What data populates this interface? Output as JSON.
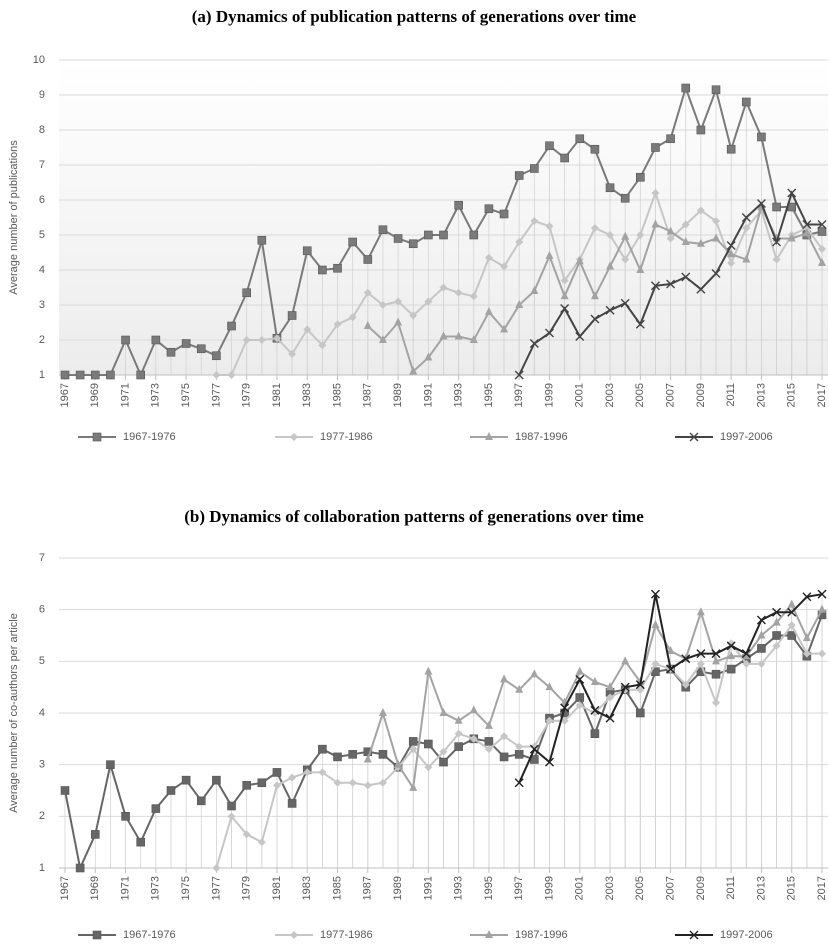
{
  "chart_data": [
    {
      "type": "line",
      "title": "(a) Dynamics of publication patterns of generations over time",
      "y_label": "Average number of publications",
      "x": [
        1967,
        1968,
        1969,
        1970,
        1971,
        1972,
        1973,
        1974,
        1975,
        1976,
        1977,
        1978,
        1979,
        1980,
        1981,
        1982,
        1983,
        1984,
        1985,
        1986,
        1987,
        1988,
        1989,
        1990,
        1991,
        1992,
        1993,
        1994,
        1995,
        1996,
        1997,
        1998,
        1999,
        2000,
        2001,
        2002,
        2003,
        2004,
        2005,
        2006,
        2007,
        2008,
        2009,
        2010,
        2011,
        2012,
        2013,
        2014,
        2015,
        2016,
        2017
      ],
      "xlim": [
        1967,
        2017
      ],
      "xticks": [
        1967,
        1969,
        1971,
        1973,
        1975,
        1977,
        1979,
        1981,
        1983,
        1985,
        1987,
        1989,
        1991,
        1993,
        1995,
        1997,
        1999,
        2001,
        2003,
        2005,
        2007,
        2009,
        2011,
        2013,
        2015,
        2017
      ],
      "ylim": [
        1,
        10
      ],
      "yticks": [
        1,
        2,
        3,
        4,
        5,
        6,
        7,
        8,
        9,
        10
      ],
      "grid": true,
      "series": [
        {
          "name": "1967-1976",
          "color": "#7a7a7a",
          "marker": "square",
          "values": [
            1,
            1,
            1,
            1,
            2,
            1,
            2,
            1.65,
            1.9,
            1.75,
            1.55,
            2.4,
            3.35,
            4.85,
            2.05,
            2.7,
            4.55,
            4.0,
            4.05,
            4.8,
            4.3,
            5.15,
            4.9,
            4.75,
            5.0,
            5.0,
            5.85,
            5.0,
            5.75,
            5.6,
            6.7,
            6.9,
            7.55,
            7.2,
            7.75,
            7.45,
            6.35,
            6.05,
            6.65,
            7.5,
            7.75,
            9.2,
            8.0,
            9.15,
            7.45,
            8.8,
            7.8,
            5.8,
            5.8,
            5.0,
            5.1
          ]
        },
        {
          "name": "1977-1986",
          "color": "#c6c6c6",
          "marker": "diamond",
          "values": [
            null,
            null,
            null,
            null,
            null,
            null,
            null,
            null,
            null,
            null,
            1,
            1,
            2,
            2,
            2.05,
            1.6,
            2.3,
            1.85,
            2.45,
            2.65,
            3.35,
            3.0,
            3.1,
            2.7,
            3.1,
            3.5,
            3.35,
            3.25,
            4.35,
            4.1,
            4.8,
            5.4,
            5.25,
            3.7,
            4.3,
            5.2,
            5.0,
            4.3,
            5.0,
            6.2,
            4.9,
            5.3,
            5.7,
            5.4,
            4.2,
            5.2,
            5.7,
            4.3,
            5.0,
            5.2,
            4.6
          ]
        },
        {
          "name": "1987-1996",
          "color": "#a3a3a3",
          "marker": "triangle",
          "values": [
            null,
            null,
            null,
            null,
            null,
            null,
            null,
            null,
            null,
            null,
            null,
            null,
            null,
            null,
            null,
            null,
            null,
            null,
            null,
            null,
            2.4,
            2.0,
            2.5,
            1.1,
            1.5,
            2.1,
            2.1,
            2.0,
            2.8,
            2.3,
            3.0,
            3.4,
            4.4,
            3.25,
            4.25,
            3.25,
            4.1,
            4.95,
            4.0,
            5.3,
            5.1,
            4.8,
            4.75,
            4.9,
            4.45,
            4.3,
            5.8,
            4.9,
            4.9,
            5.05,
            4.2
          ]
        },
        {
          "name": "1997-2006",
          "color": "#444444",
          "marker": "x",
          "values": [
            null,
            null,
            null,
            null,
            null,
            null,
            null,
            null,
            null,
            null,
            null,
            null,
            null,
            null,
            null,
            null,
            null,
            null,
            null,
            null,
            null,
            null,
            null,
            null,
            null,
            null,
            null,
            null,
            null,
            null,
            1.0,
            1.9,
            2.2,
            2.9,
            2.1,
            2.6,
            2.85,
            3.05,
            2.45,
            3.55,
            3.6,
            3.8,
            3.45,
            3.9,
            4.7,
            5.5,
            5.9,
            4.8,
            6.2,
            5.3,
            5.3
          ]
        }
      ]
    },
    {
      "type": "line",
      "title": "(b) Dynamics of collaboration patterns of generations over time",
      "y_label": "Average number of co-authors per article",
      "x": [
        1967,
        1968,
        1969,
        1970,
        1971,
        1972,
        1973,
        1974,
        1975,
        1976,
        1977,
        1978,
        1979,
        1980,
        1981,
        1982,
        1983,
        1984,
        1985,
        1986,
        1987,
        1988,
        1989,
        1990,
        1991,
        1992,
        1993,
        1994,
        1995,
        1996,
        1997,
        1998,
        1999,
        2000,
        2001,
        2002,
        2003,
        2004,
        2005,
        2006,
        2007,
        2008,
        2009,
        2010,
        2011,
        2012,
        2013,
        2014,
        2015,
        2016,
        2017
      ],
      "xlim": [
        1967,
        2017
      ],
      "xticks": [
        1967,
        1969,
        1971,
        1973,
        1975,
        1977,
        1979,
        1981,
        1983,
        1985,
        1987,
        1989,
        1991,
        1993,
        1995,
        1997,
        1999,
        2001,
        2003,
        2005,
        2007,
        2009,
        2011,
        2013,
        2015,
        2017
      ],
      "ylim": [
        1,
        7
      ],
      "yticks": [
        1,
        2,
        3,
        4,
        5,
        6,
        7
      ],
      "grid": true,
      "series": [
        {
          "name": "1967-1976",
          "color": "#666666",
          "marker": "square",
          "values": [
            2.5,
            1.0,
            1.65,
            3.0,
            2.0,
            1.5,
            2.15,
            2.5,
            2.7,
            2.3,
            2.7,
            2.2,
            2.6,
            2.65,
            2.85,
            2.25,
            2.9,
            3.3,
            3.15,
            3.2,
            3.25,
            3.2,
            2.95,
            3.45,
            3.4,
            3.05,
            3.35,
            3.5,
            3.45,
            3.15,
            3.2,
            3.1,
            3.9,
            4.0,
            4.3,
            3.6,
            4.4,
            4.45,
            4.0,
            4.8,
            4.85,
            4.5,
            4.8,
            4.75,
            4.85,
            5.05,
            5.25,
            5.5,
            5.5,
            5.1,
            5.9
          ]
        },
        {
          "name": "1977-1986",
          "color": "#c6c6c6",
          "marker": "diamond",
          "values": [
            null,
            null,
            null,
            null,
            null,
            null,
            null,
            null,
            null,
            null,
            1.0,
            2.0,
            1.65,
            1.5,
            2.6,
            2.75,
            2.85,
            2.85,
            2.65,
            2.65,
            2.6,
            2.65,
            2.95,
            3.3,
            2.95,
            3.25,
            3.6,
            3.5,
            3.3,
            3.55,
            3.35,
            3.35,
            3.85,
            3.85,
            4.15,
            4.0,
            4.3,
            4.45,
            4.45,
            4.95,
            4.85,
            4.55,
            4.95,
            4.2,
            5.35,
            4.95,
            4.95,
            5.3,
            5.7,
            5.15,
            5.15
          ]
        },
        {
          "name": "1987-1996",
          "color": "#a3a3a3",
          "marker": "triangle",
          "values": [
            null,
            null,
            null,
            null,
            null,
            null,
            null,
            null,
            null,
            null,
            null,
            null,
            null,
            null,
            null,
            null,
            null,
            null,
            null,
            null,
            3.1,
            4.0,
            3.0,
            2.55,
            4.8,
            4.0,
            3.85,
            4.05,
            3.75,
            4.65,
            4.45,
            4.75,
            4.5,
            4.2,
            4.8,
            4.6,
            4.5,
            5.0,
            4.6,
            5.7,
            5.2,
            5.05,
            5.95,
            5.0,
            5.1,
            5.1,
            5.5,
            5.75,
            6.1,
            5.45,
            6.0
          ]
        },
        {
          "name": "1997-2006",
          "color": "#222222",
          "marker": "x",
          "values": [
            null,
            null,
            null,
            null,
            null,
            null,
            null,
            null,
            null,
            null,
            null,
            null,
            null,
            null,
            null,
            null,
            null,
            null,
            null,
            null,
            null,
            null,
            null,
            null,
            null,
            null,
            null,
            null,
            null,
            null,
            2.65,
            3.3,
            3.05,
            4.1,
            4.65,
            4.05,
            3.9,
            4.5,
            4.55,
            6.3,
            4.85,
            5.05,
            5.15,
            5.15,
            5.3,
            5.15,
            5.8,
            5.95,
            5.95,
            6.25,
            6.3
          ]
        }
      ]
    }
  ]
}
